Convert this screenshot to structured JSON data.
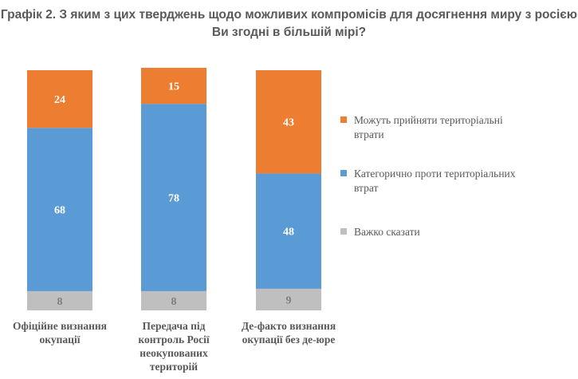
{
  "chart_data": {
    "type": "bar",
    "stacked": true,
    "title": "Графік 2. З яким з цих тверджень щодо можливих компромісів для досягнення миру з росією Ви згодні в більшій мірі?",
    "categories": [
      [
        "Офіційне визнання",
        "окупації"
      ],
      [
        "Передача під",
        "контроль Росії",
        "неокупованих",
        "територій"
      ],
      [
        "Де-факто визнання",
        "окупації без де-юре"
      ]
    ],
    "series": [
      {
        "name": "Важко сказати",
        "values": [
          8,
          8,
          9
        ],
        "color": "#BFBFBF",
        "label_color": "#7F7F7F"
      },
      {
        "name": "Категорично проти територіальних втрат",
        "values": [
          68,
          78,
          48
        ],
        "color": "#5B9BD5",
        "label_color": "#FFFFFF"
      },
      {
        "name": "Можуть прийняти територіальні втрати",
        "values": [
          24,
          15,
          43
        ],
        "color": "#ED7D31",
        "label_color": "#FFFFFF"
      }
    ],
    "legend": {
      "placement": "right",
      "entries": [
        {
          "lines": [
            "Можуть прийняти територіальні",
            "втрати"
          ],
          "color": "#ED7D31"
        },
        {
          "lines": [
            "Категорично проти територіальних",
            "втрат"
          ],
          "color": "#5B9BD5"
        },
        {
          "lines": [
            "Важко сказати"
          ],
          "color": "#BFBFBF"
        }
      ]
    },
    "ylim": [
      0,
      100
    ],
    "grid": false
  }
}
